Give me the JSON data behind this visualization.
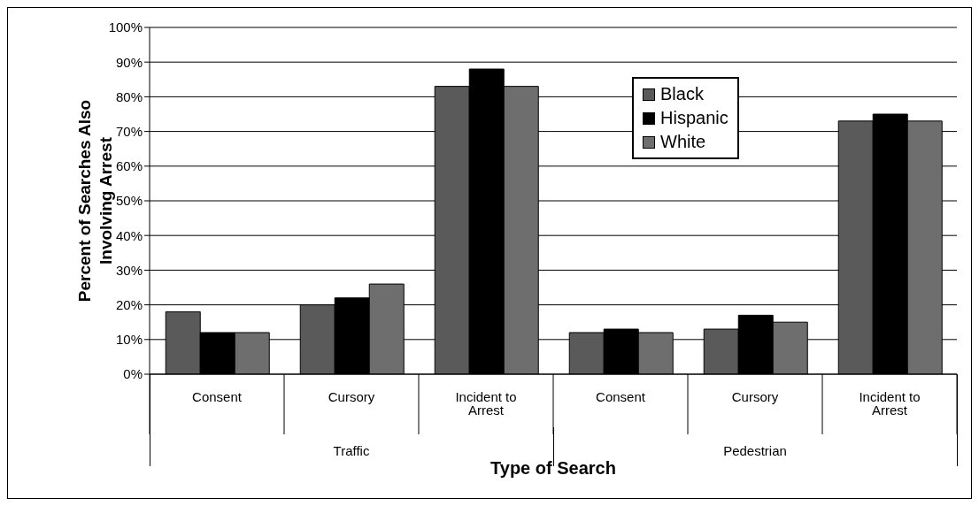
{
  "chart_data": {
    "type": "bar",
    "xlabel": "Type of Search",
    "ylabel": "Percent of Searches Also Involving Arrest",
    "categories": [
      "Consent",
      "Cursory",
      "Incident to Arrest",
      "Consent",
      "Cursory",
      "Incident to Arrest"
    ],
    "series": [
      {
        "name": "Black",
        "color": "#5a5a5a",
        "values": [
          18,
          20,
          83,
          12,
          13,
          73
        ]
      },
      {
        "name": "Hispanic",
        "color": "#000000",
        "values": [
          12,
          22,
          88,
          13,
          17,
          75
        ]
      },
      {
        "name": "White",
        "color": "#6e6e6e",
        "values": [
          12,
          26,
          83,
          12,
          15,
          73
        ]
      }
    ],
    "ylim": [
      0,
      100
    ],
    "yticks": [
      {
        "value": 0,
        "label": "0%"
      },
      {
        "value": 10,
        "label": "10%"
      },
      {
        "value": 20,
        "label": "20%"
      },
      {
        "value": 30,
        "label": "30%"
      },
      {
        "value": 40,
        "label": "40%"
      },
      {
        "value": 50,
        "label": "50%"
      },
      {
        "value": 60,
        "label": "60%"
      },
      {
        "value": 70,
        "label": "70%"
      },
      {
        "value": 80,
        "label": "80%"
      },
      {
        "value": 90,
        "label": "90%"
      },
      {
        "value": 100,
        "label": "100%"
      }
    ],
    "grid": "y",
    "legend": "top right",
    "annotations": [
      "Traffic",
      "Pedestrian"
    ]
  }
}
